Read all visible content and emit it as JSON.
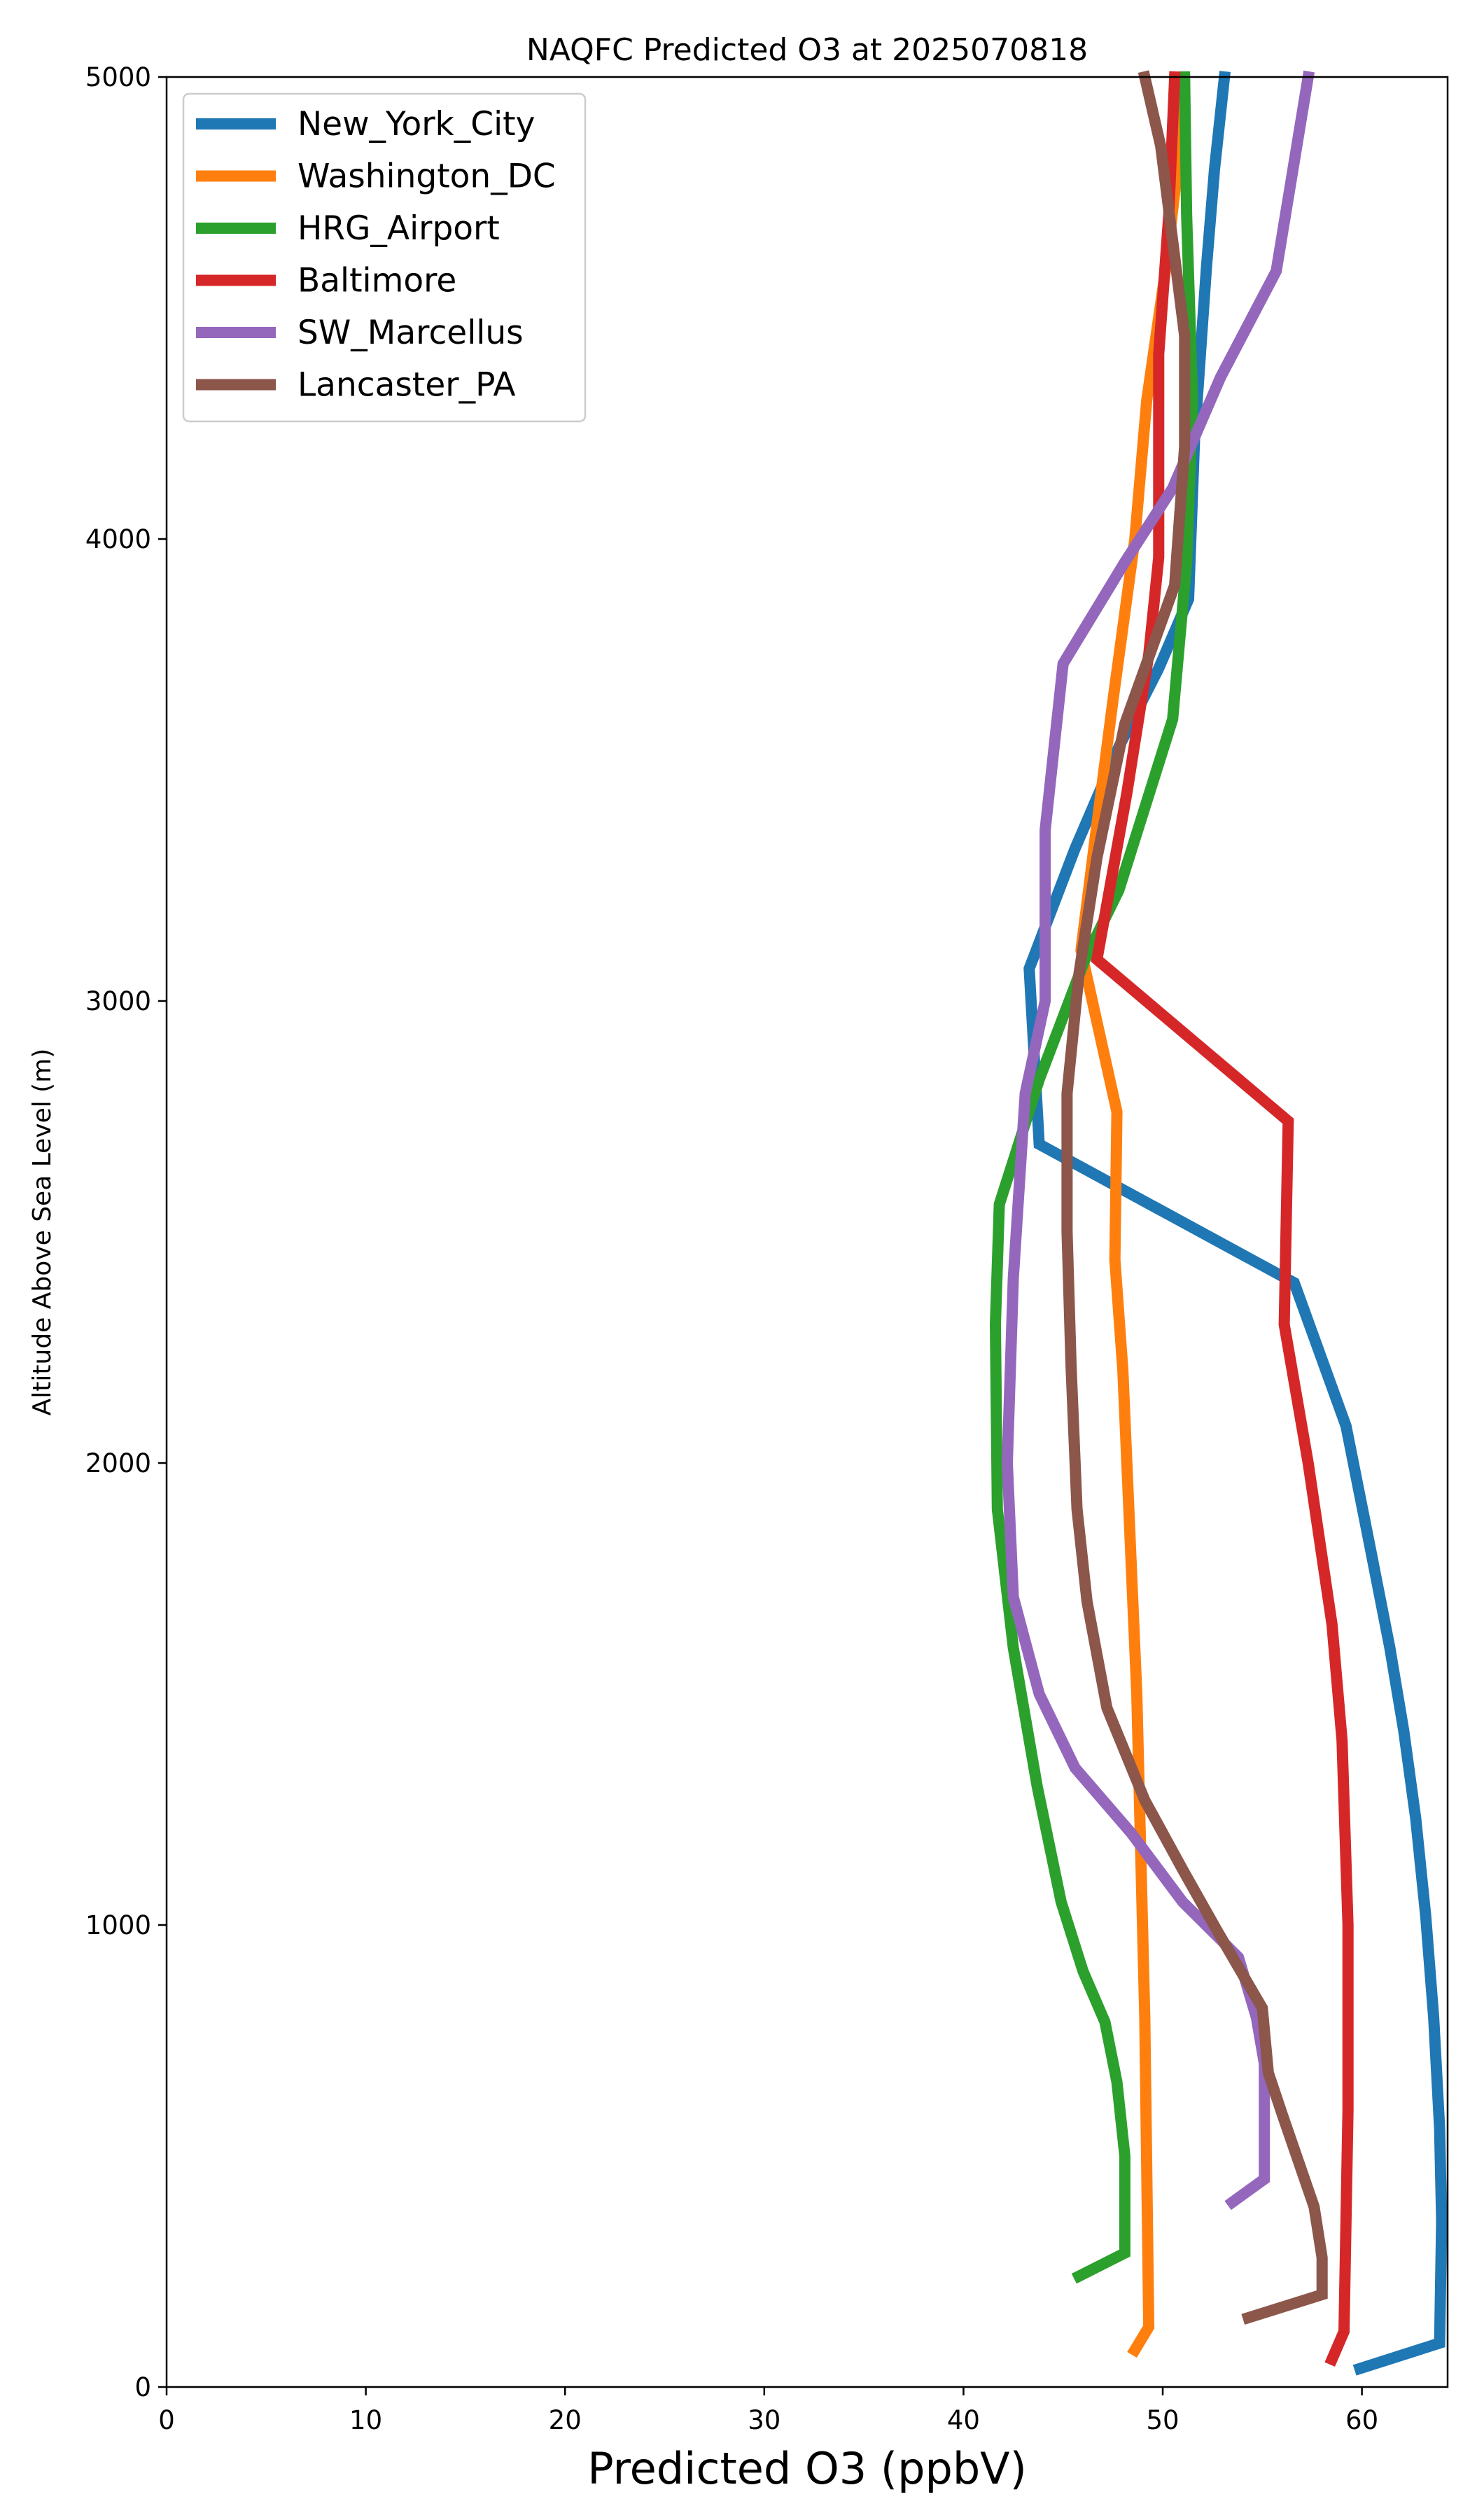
{
  "chart_data": {
    "type": "line",
    "title": "NAQFC Predicted O3 at 2025070818",
    "xlabel": "Predicted O3 (ppbV)",
    "ylabel": "Altitude Above Sea Level (m)",
    "xlim": [
      0,
      64.3
    ],
    "ylim": [
      0,
      5000
    ],
    "xticks": [
      "0",
      "10",
      "20",
      "30",
      "40",
      "50",
      "60"
    ],
    "yticks": [
      "0",
      "1000",
      "2000",
      "3000",
      "4000",
      "5000"
    ],
    "grid": false,
    "legend_position": "upper-left",
    "series": [
      {
        "name": "New_York_City",
        "color": "#1f77b4",
        "points": [
          [
            59.9,
            40
          ],
          [
            63.9,
            95
          ],
          [
            64.0,
            360
          ],
          [
            63.9,
            560
          ],
          [
            63.6,
            800
          ],
          [
            63.2,
            1020
          ],
          [
            62.7,
            1230
          ],
          [
            62.1,
            1420
          ],
          [
            61.4,
            1600
          ],
          [
            60.4,
            1820
          ],
          [
            59.2,
            2080
          ],
          [
            56.6,
            2390
          ],
          [
            43.8,
            2690
          ],
          [
            43.3,
            3070
          ],
          [
            45.6,
            3330
          ],
          [
            47.8,
            3550
          ],
          [
            49.8,
            3720
          ],
          [
            51.3,
            3870
          ],
          [
            51.6,
            4220
          ],
          [
            52.2,
            4590
          ],
          [
            52.6,
            4800
          ],
          [
            53.1,
            5000
          ]
        ]
      },
      {
        "name": "Washington_DC",
        "color": "#ff7f0e",
        "points": [
          [
            48.6,
            80
          ],
          [
            49.3,
            130
          ],
          [
            49.1,
            800
          ],
          [
            48.7,
            1500
          ],
          [
            48.0,
            2200
          ],
          [
            47.6,
            2440
          ],
          [
            47.7,
            2760
          ],
          [
            45.9,
            3110
          ],
          [
            46.6,
            3350
          ],
          [
            47.5,
            3650
          ],
          [
            48.6,
            4000
          ],
          [
            49.2,
            4300
          ],
          [
            50.2,
            4600
          ],
          [
            51.0,
            4900
          ],
          [
            51.0,
            5000
          ]
        ]
      },
      {
        "name": "HRG_Airport",
        "color": "#2ca02c",
        "points": [
          [
            45.8,
            240
          ],
          [
            48.1,
            290
          ],
          [
            48.1,
            500
          ],
          [
            47.7,
            660
          ],
          [
            47.1,
            790
          ],
          [
            46.0,
            900
          ],
          [
            44.9,
            1050
          ],
          [
            43.7,
            1300
          ],
          [
            42.5,
            1600
          ],
          [
            41.7,
            1900
          ],
          [
            41.6,
            2300
          ],
          [
            41.8,
            2560
          ],
          [
            43.8,
            2830
          ],
          [
            46.1,
            3090
          ],
          [
            47.8,
            3240
          ],
          [
            50.5,
            3610
          ],
          [
            51.2,
            3950
          ],
          [
            51.5,
            4300
          ],
          [
            51.2,
            4700
          ],
          [
            51.1,
            5000
          ]
        ]
      },
      {
        "name": "Baltimore",
        "color": "#d62728",
        "points": [
          [
            58.5,
            60
          ],
          [
            59.1,
            120
          ],
          [
            59.3,
            600
          ],
          [
            59.3,
            1000
          ],
          [
            59.0,
            1400
          ],
          [
            58.5,
            1650
          ],
          [
            57.3,
            2000
          ],
          [
            56.1,
            2300
          ],
          [
            56.3,
            2740
          ],
          [
            46.7,
            3090
          ],
          [
            48.2,
            3450
          ],
          [
            49.3,
            3750
          ],
          [
            49.8,
            3960
          ],
          [
            49.8,
            4400
          ],
          [
            50.3,
            4700
          ],
          [
            50.6,
            5000
          ]
        ]
      },
      {
        "name": "SW_Marcellus",
        "color": "#9467bd",
        "points": [
          [
            53.5,
            400
          ],
          [
            55.1,
            450
          ],
          [
            55.1,
            700
          ],
          [
            54.7,
            800
          ],
          [
            53.8,
            930
          ],
          [
            51.0,
            1050
          ],
          [
            48.4,
            1200
          ],
          [
            45.6,
            1340
          ],
          [
            43.8,
            1500
          ],
          [
            42.5,
            1710
          ],
          [
            42.2,
            2000
          ],
          [
            42.5,
            2400
          ],
          [
            43.1,
            2800
          ],
          [
            44.1,
            3000
          ],
          [
            44.1,
            3370
          ],
          [
            45.0,
            3730
          ],
          [
            48.1,
            3950
          ],
          [
            50.5,
            4110
          ],
          [
            52.9,
            4350
          ],
          [
            55.7,
            4580
          ],
          [
            57.3,
            5000
          ]
        ]
      },
      {
        "name": "Lancaster_PA",
        "color": "#8c564b",
        "points": [
          [
            54.3,
            150
          ],
          [
            58.0,
            200
          ],
          [
            58.0,
            280
          ],
          [
            57.6,
            390
          ],
          [
            56.0,
            590
          ],
          [
            55.3,
            680
          ],
          [
            55.0,
            820
          ],
          [
            52.7,
            990
          ],
          [
            51.0,
            1120
          ],
          [
            49.1,
            1270
          ],
          [
            47.2,
            1470
          ],
          [
            46.2,
            1700
          ],
          [
            45.7,
            1900
          ],
          [
            45.4,
            2210
          ],
          [
            45.2,
            2500
          ],
          [
            45.2,
            2800
          ],
          [
            45.8,
            3060
          ],
          [
            46.7,
            3310
          ],
          [
            48.1,
            3600
          ],
          [
            50.6,
            3900
          ],
          [
            51.1,
            4200
          ],
          [
            51.1,
            4440
          ],
          [
            49.9,
            4850
          ],
          [
            49.1,
            5000
          ]
        ]
      }
    ]
  }
}
